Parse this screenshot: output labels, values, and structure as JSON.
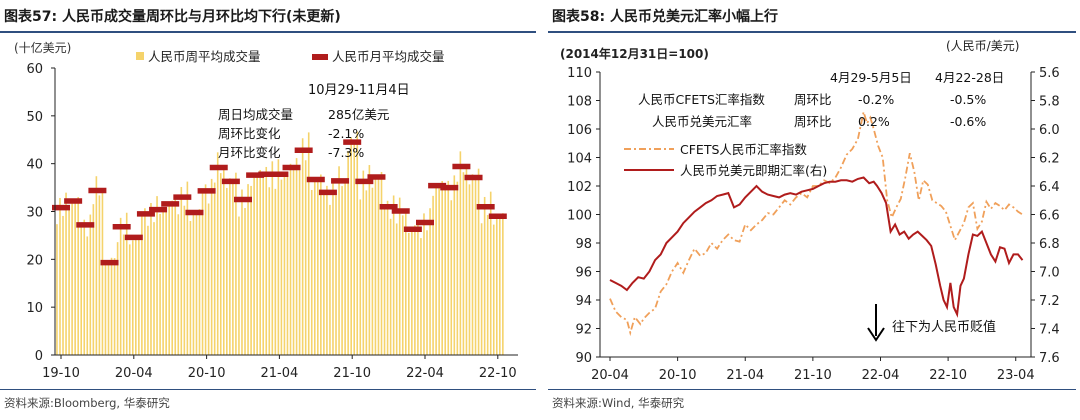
{
  "chart_data": [
    {
      "type": "bar",
      "title": "图表57:  人民币成交量周环比与月环比均下行(未更新)",
      "ylabel": "(十亿美元)",
      "ylim": [
        0,
        60
      ],
      "yticks": [
        0,
        10,
        20,
        30,
        40,
        50,
        60
      ],
      "xticks": [
        {
          "label": "19-10",
          "x": 0
        },
        {
          "label": "20-04",
          "x": 6
        },
        {
          "label": "20-10",
          "x": 12
        },
        {
          "label": "21-04",
          "x": 18
        },
        {
          "label": "21-10",
          "x": 24
        },
        {
          "label": "22-04",
          "x": 30
        },
        {
          "label": "22-10",
          "x": 36
        }
      ],
      "xlim": [
        0,
        37.5
      ],
      "legend": [
        "人民币周平均成交量",
        "人民币月平均成交量"
      ],
      "monthly": [
        {
          "x": 0,
          "v": 30.8
        },
        {
          "x": 1,
          "v": 32.2
        },
        {
          "x": 2,
          "v": 27.2
        },
        {
          "x": 3,
          "v": 34.4
        },
        {
          "x": 4,
          "v": 19.3
        },
        {
          "x": 5,
          "v": 26.8
        },
        {
          "x": 6,
          "v": 24.6
        },
        {
          "x": 7,
          "v": 29.5
        },
        {
          "x": 8,
          "v": 30.4
        },
        {
          "x": 9,
          "v": 31.6
        },
        {
          "x": 10,
          "v": 33.0
        },
        {
          "x": 11,
          "v": 29.8
        },
        {
          "x": 12,
          "v": 34.3
        },
        {
          "x": 13,
          "v": 39.2
        },
        {
          "x": 14,
          "v": 36.3
        },
        {
          "x": 15,
          "v": 32.5
        },
        {
          "x": 16,
          "v": 37.6
        },
        {
          "x": 17,
          "v": 37.8
        },
        {
          "x": 18,
          "v": 37.8
        },
        {
          "x": 19,
          "v": 39.2
        },
        {
          "x": 20,
          "v": 42.8
        },
        {
          "x": 21,
          "v": 36.7
        },
        {
          "x": 22,
          "v": 34.0
        },
        {
          "x": 23,
          "v": 36.4
        },
        {
          "x": 24,
          "v": 44.5
        },
        {
          "x": 25,
          "v": 36.3
        },
        {
          "x": 26,
          "v": 37.2
        },
        {
          "x": 27,
          "v": 31.0
        },
        {
          "x": 28,
          "v": 30.1
        },
        {
          "x": 29,
          "v": 26.3
        },
        {
          "x": 30,
          "v": 27.7
        },
        {
          "x": 31,
          "v": 35.4
        },
        {
          "x": 32,
          "v": 35.0
        },
        {
          "x": 33,
          "v": 39.4
        },
        {
          "x": 34,
          "v": 37.1
        },
        {
          "x": 35,
          "v": 31.0
        },
        {
          "x": 36,
          "v": 29.0
        }
      ],
      "weekly_base": [
        30.8,
        32.2,
        27.2,
        34.4,
        19.3,
        26.8,
        24.6,
        29.5,
        30.4,
        31.6,
        33.0,
        29.8,
        34.3,
        39.2,
        36.3,
        32.5,
        37.6,
        37.8,
        37.8,
        39.2,
        42.8,
        36.7,
        34.0,
        36.4,
        44.5,
        36.3,
        37.2,
        31.0,
        30.1,
        26.3,
        27.7,
        35.4,
        35.0,
        39.4,
        37.1,
        31.0,
        29.0
      ],
      "annotation": {
        "heading": "10月29-11月4日",
        "rows": [
          {
            "label": "周日均成交量",
            "value": "285亿美元"
          },
          {
            "label": "周环比变化",
            "value": "-2.1%"
          },
          {
            "label": "月环比变化",
            "value": "-7.3%"
          }
        ]
      },
      "source": "资料来源:Bloomberg, 华泰研究",
      "colors": {
        "weekly": "#f5d36b",
        "monthly": "#b01c1c",
        "title_rule": "#2f4f7f"
      }
    },
    {
      "type": "line",
      "title": "图表58:  人民币兑美元汇率小幅上行",
      "ylabel_left": "(2014年12月31日=100)",
      "ylabel_right": "(人民币/美元)",
      "ylim_left": [
        90,
        110
      ],
      "yticks_left": [
        90,
        92,
        94,
        96,
        98,
        100,
        102,
        104,
        106,
        108,
        110
      ],
      "ylim_right": [
        7.6,
        5.6
      ],
      "yticks_right": [
        "5.6",
        "5.8",
        "6.0",
        "6.2",
        "6.4",
        "6.6",
        "6.8",
        "7.0",
        "7.2",
        "7.4",
        "7.6"
      ],
      "xlim": [
        0,
        37
      ],
      "xticks": [
        {
          "label": "20-04",
          "x": 0
        },
        {
          "label": "20-10",
          "x": 6
        },
        {
          "label": "21-04",
          "x": 12
        },
        {
          "label": "21-10",
          "x": 18
        },
        {
          "label": "22-04",
          "x": 24
        },
        {
          "label": "22-10",
          "x": 30
        },
        {
          "label": "23-04",
          "x": 36
        }
      ],
      "series": [
        {
          "name": "CFETS人民币汇率指数",
          "axis": "left",
          "style": "dash-dot",
          "color": "#f0a05a",
          "points": [
            [
              0,
              94.1
            ],
            [
              0.5,
              93.2
            ],
            [
              1,
              92.8
            ],
            [
              1.5,
              92.6
            ],
            [
              1.8,
              91.7
            ],
            [
              2.2,
              92.8
            ],
            [
              2.7,
              92.3
            ],
            [
              3,
              92.7
            ],
            [
              3.5,
              93.1
            ],
            [
              4,
              93.4
            ],
            [
              4.5,
              94.6
            ],
            [
              5,
              95.1
            ],
            [
              5.5,
              96.0
            ],
            [
              6,
              96.6
            ],
            [
              6.5,
              95.9
            ],
            [
              7,
              96.8
            ],
            [
              7.5,
              97.6
            ],
            [
              8,
              97.1
            ],
            [
              8.5,
              97.3
            ],
            [
              9,
              98.0
            ],
            [
              9.5,
              97.6
            ],
            [
              10,
              98.2
            ],
            [
              10.5,
              98.6
            ],
            [
              11,
              98.2
            ],
            [
              11.5,
              98.1
            ],
            [
              12,
              99.3
            ],
            [
              12.5,
              98.9
            ],
            [
              13,
              99.3
            ],
            [
              13.5,
              99.6
            ],
            [
              14,
              100.1
            ],
            [
              14.5,
              100.0
            ],
            [
              15,
              100.5
            ],
            [
              15.5,
              101.0
            ],
            [
              16,
              100.7
            ],
            [
              16.5,
              101.2
            ],
            [
              17,
              101.5
            ],
            [
              17.5,
              101.2
            ],
            [
              18,
              102.0
            ],
            [
              18.5,
              102.0
            ],
            [
              19,
              102.4
            ],
            [
              19.5,
              102.2
            ],
            [
              20,
              102.6
            ],
            [
              20.5,
              103.3
            ],
            [
              21,
              104.2
            ],
            [
              21.5,
              104.6
            ],
            [
              22,
              105.3
            ],
            [
              22.5,
              107.2
            ],
            [
              22.8,
              106.4
            ],
            [
              23.1,
              106.8
            ],
            [
              23.4,
              106.0
            ],
            [
              23.8,
              104.8
            ],
            [
              24.2,
              104.0
            ],
            [
              24.6,
              101.0
            ],
            [
              25.0,
              99.8
            ],
            [
              25.4,
              100.5
            ],
            [
              25.8,
              101.1
            ],
            [
              26.2,
              102.6
            ],
            [
              26.6,
              104.3
            ],
            [
              27.0,
              103.0
            ],
            [
              27.4,
              101.0
            ],
            [
              27.8,
              102.4
            ],
            [
              28.2,
              102.1
            ],
            [
              28.6,
              101.0
            ],
            [
              29.0,
              100.8
            ],
            [
              29.4,
              100.6
            ],
            [
              29.8,
              100.2
            ],
            [
              30.2,
              99.2
            ],
            [
              30.6,
              98.2
            ],
            [
              31.0,
              98.8
            ],
            [
              31.4,
              99.4
            ],
            [
              31.8,
              100.5
            ],
            [
              32.2,
              100.8
            ],
            [
              32.6,
              99.0
            ],
            [
              33.0,
              99.5
            ],
            [
              33.4,
              100.9
            ],
            [
              33.8,
              100.4
            ],
            [
              34.2,
              100.8
            ],
            [
              34.6,
              100.6
            ],
            [
              35.0,
              100.3
            ],
            [
              35.4,
              100.7
            ],
            [
              35.8,
              100.5
            ],
            [
              36.2,
              100.2
            ],
            [
              36.6,
              100.0
            ]
          ]
        },
        {
          "name": "人民币兑美元即期汇率(右)",
          "axis": "right",
          "style": "solid",
          "color": "#b01c1c",
          "points": [
            [
              0,
              7.06
            ],
            [
              0.5,
              7.08
            ],
            [
              1,
              7.1
            ],
            [
              1.5,
              7.13
            ],
            [
              2,
              7.08
            ],
            [
              2.5,
              7.04
            ],
            [
              3,
              7.05
            ],
            [
              3.5,
              7.0
            ],
            [
              4,
              6.92
            ],
            [
              4.5,
              6.88
            ],
            [
              5,
              6.8
            ],
            [
              5.5,
              6.76
            ],
            [
              6,
              6.72
            ],
            [
              6.5,
              6.66
            ],
            [
              7,
              6.62
            ],
            [
              7.5,
              6.58
            ],
            [
              8,
              6.55
            ],
            [
              8.5,
              6.52
            ],
            [
              9,
              6.5
            ],
            [
              9.5,
              6.47
            ],
            [
              10,
              6.46
            ],
            [
              10.5,
              6.45
            ],
            [
              11,
              6.55
            ],
            [
              11.5,
              6.53
            ],
            [
              12,
              6.48
            ],
            [
              12.5,
              6.44
            ],
            [
              13,
              6.4
            ],
            [
              13.5,
              6.44
            ],
            [
              14,
              6.46
            ],
            [
              14.5,
              6.47
            ],
            [
              15,
              6.48
            ],
            [
              15.5,
              6.46
            ],
            [
              16,
              6.45
            ],
            [
              16.5,
              6.46
            ],
            [
              17,
              6.44
            ],
            [
              17.5,
              6.43
            ],
            [
              18,
              6.42
            ],
            [
              18.5,
              6.4
            ],
            [
              19,
              6.38
            ],
            [
              19.5,
              6.37
            ],
            [
              20,
              6.37
            ],
            [
              20.5,
              6.36
            ],
            [
              21,
              6.36
            ],
            [
              21.5,
              6.37
            ],
            [
              22,
              6.35
            ],
            [
              22.5,
              6.34
            ],
            [
              23,
              6.38
            ],
            [
              23.4,
              6.37
            ],
            [
              23.7,
              6.4
            ],
            [
              24.1,
              6.45
            ],
            [
              24.5,
              6.52
            ],
            [
              24.9,
              6.72
            ],
            [
              25.3,
              6.67
            ],
            [
              25.7,
              6.74
            ],
            [
              26.1,
              6.72
            ],
            [
              26.5,
              6.77
            ],
            [
              26.9,
              6.74
            ],
            [
              27.3,
              6.72
            ],
            [
              27.7,
              6.75
            ],
            [
              28.1,
              6.78
            ],
            [
              28.5,
              6.82
            ],
            [
              28.9,
              6.95
            ],
            [
              29.3,
              7.1
            ],
            [
              29.6,
              7.2
            ],
            [
              29.9,
              7.25
            ],
            [
              30.2,
              7.08
            ],
            [
              30.5,
              7.25
            ],
            [
              30.8,
              7.3
            ],
            [
              31.1,
              7.1
            ],
            [
              31.4,
              7.05
            ],
            [
              31.8,
              6.88
            ],
            [
              32.2,
              6.74
            ],
            [
              32.6,
              6.75
            ],
            [
              33.0,
              6.72
            ],
            [
              33.4,
              6.8
            ],
            [
              33.8,
              6.88
            ],
            [
              34.2,
              6.93
            ],
            [
              34.6,
              6.83
            ],
            [
              35.0,
              6.84
            ],
            [
              35.4,
              6.94
            ],
            [
              35.8,
              6.88
            ],
            [
              36.2,
              6.88
            ],
            [
              36.6,
              6.92
            ]
          ]
        }
      ],
      "table": {
        "headers": [
          "4月29-5月5日",
          "4月22-28日"
        ],
        "rows": [
          {
            "name": "人民币CFETS汇率指数",
            "metric": "周环比",
            "v1": "-0.2%",
            "v2": "-0.5%"
          },
          {
            "name": "人民币兑美元汇率",
            "metric": "周环比",
            "v1": "0.2%",
            "v2": "-0.6%"
          }
        ]
      },
      "arrow_note": "往下为人民币贬值",
      "source": "资料来源:Wind, 华泰研究"
    }
  ]
}
